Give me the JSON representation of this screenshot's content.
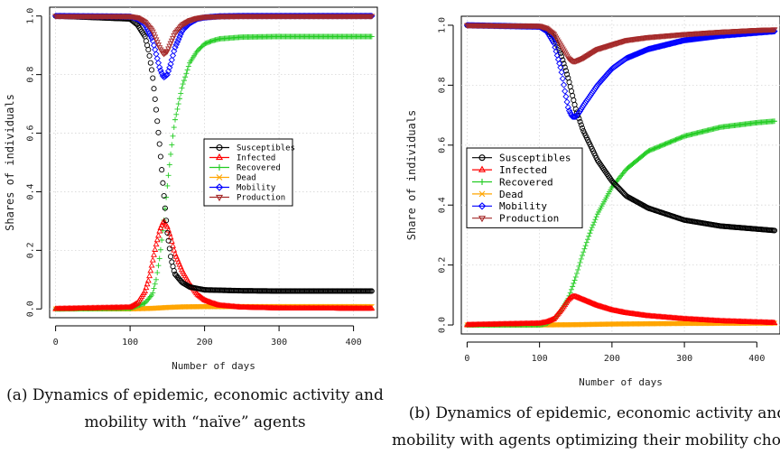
{
  "chart_data": [
    {
      "type": "line",
      "xlabel": "Number of days",
      "ylabel": "Shares of individuals",
      "xlim": [
        -8,
        432
      ],
      "ylim": [
        -0.03,
        1.03
      ],
      "xticks": [
        "0",
        "100",
        "200",
        "300",
        "400"
      ],
      "yticks": [
        "0.0",
        "0.2",
        "0.4",
        "0.6",
        "0.8",
        "1.0"
      ],
      "grid": true,
      "legend_position": "center-right",
      "caption_lines": [
        "(a) Dynamics of epidemic, economic activity and",
        "mobility with “naïve” agents"
      ],
      "series": [
        {
          "name": "Susceptibles",
          "color": "#000000",
          "marker": "circle",
          "x": [
            0,
            100,
            110,
            120,
            125,
            130,
            135,
            140,
            145,
            150,
            155,
            160,
            170,
            180,
            200,
            250,
            300,
            425
          ],
          "y": [
            1.0,
            0.99,
            0.97,
            0.93,
            0.88,
            0.8,
            0.68,
            0.55,
            0.4,
            0.26,
            0.17,
            0.12,
            0.09,
            0.075,
            0.065,
            0.062,
            0.061,
            0.061
          ]
        },
        {
          "name": "Infected",
          "color": "#ff0000",
          "marker": "triangle",
          "x": [
            0,
            100,
            110,
            120,
            125,
            130,
            135,
            140,
            145,
            150,
            155,
            160,
            170,
            180,
            190,
            200,
            210,
            220,
            250,
            300,
            425
          ],
          "y": [
            0.0,
            0.005,
            0.02,
            0.06,
            0.1,
            0.16,
            0.22,
            0.27,
            0.3,
            0.28,
            0.24,
            0.19,
            0.13,
            0.085,
            0.05,
            0.03,
            0.02,
            0.012,
            0.005,
            0.002,
            0.001
          ]
        },
        {
          "name": "Recovered",
          "color": "#22cc22",
          "marker": "plus",
          "x": [
            0,
            100,
            120,
            130,
            135,
            140,
            145,
            150,
            155,
            160,
            170,
            180,
            190,
            200,
            210,
            220,
            250,
            300,
            425
          ],
          "y": [
            0.0,
            0.002,
            0.02,
            0.05,
            0.1,
            0.18,
            0.29,
            0.42,
            0.54,
            0.64,
            0.76,
            0.84,
            0.88,
            0.905,
            0.915,
            0.922,
            0.928,
            0.93,
            0.93
          ]
        },
        {
          "name": "Dead",
          "color": "#ffa500",
          "marker": "cross",
          "x": [
            0,
            100,
            130,
            150,
            170,
            200,
            250,
            425
          ],
          "y": [
            0.0,
            0.0,
            0.002,
            0.005,
            0.007,
            0.008,
            0.008,
            0.008
          ]
        },
        {
          "name": "Mobility",
          "color": "#0000ff",
          "marker": "diamond",
          "x": [
            0,
            100,
            110,
            120,
            130,
            135,
            140,
            145,
            150,
            155,
            160,
            170,
            180,
            190,
            200,
            220,
            250,
            425
          ],
          "y": [
            1.0,
            0.998,
            0.99,
            0.97,
            0.92,
            0.87,
            0.82,
            0.79,
            0.8,
            0.84,
            0.89,
            0.95,
            0.975,
            0.99,
            0.995,
            0.999,
            1.0,
            1.0
          ]
        },
        {
          "name": "Production",
          "color": "#a52a2a",
          "marker": "triangle-down",
          "x": [
            0,
            100,
            110,
            120,
            130,
            135,
            140,
            145,
            150,
            155,
            160,
            170,
            180,
            190,
            200,
            220,
            250,
            425
          ],
          "y": [
            1.0,
            0.999,
            0.995,
            0.98,
            0.95,
            0.92,
            0.89,
            0.87,
            0.88,
            0.91,
            0.94,
            0.97,
            0.985,
            0.993,
            0.997,
            0.999,
            1.0,
            1.0
          ]
        }
      ]
    },
    {
      "type": "line",
      "xlabel": "Number of days",
      "ylabel": "Share of individuals",
      "xlim": [
        -8,
        432
      ],
      "ylim": [
        -0.03,
        1.03
      ],
      "xticks": [
        "0",
        "100",
        "200",
        "300",
        "400"
      ],
      "yticks": [
        "0.0",
        "0.2",
        "0.4",
        "0.6",
        "0.8",
        "1.0"
      ],
      "grid": true,
      "legend_position": "center-left",
      "caption_lines": [
        "(b) Dynamics of epidemic, economic activity and",
        "mobility with agents optimizing their mobility choice"
      ],
      "series": [
        {
          "name": "Susceptibles",
          "color": "#000000",
          "marker": "circle",
          "x": [
            0,
            100,
            110,
            120,
            130,
            140,
            145,
            150,
            160,
            170,
            180,
            200,
            220,
            250,
            300,
            350,
            400,
            425
          ],
          "y": [
            1.0,
            0.995,
            0.985,
            0.96,
            0.9,
            0.82,
            0.77,
            0.72,
            0.65,
            0.6,
            0.55,
            0.48,
            0.43,
            0.39,
            0.35,
            0.33,
            0.32,
            0.315
          ]
        },
        {
          "name": "Infected",
          "color": "#ff0000",
          "marker": "triangle",
          "x": [
            0,
            100,
            110,
            120,
            130,
            140,
            145,
            150,
            160,
            170,
            180,
            200,
            220,
            250,
            300,
            350,
            400,
            425
          ],
          "y": [
            0.0,
            0.005,
            0.01,
            0.02,
            0.05,
            0.085,
            0.095,
            0.095,
            0.085,
            0.075,
            0.065,
            0.05,
            0.04,
            0.03,
            0.02,
            0.013,
            0.009,
            0.007
          ]
        },
        {
          "name": "Recovered",
          "color": "#22cc22",
          "marker": "plus",
          "x": [
            0,
            100,
            110,
            120,
            130,
            140,
            150,
            160,
            170,
            180,
            200,
            220,
            250,
            300,
            350,
            400,
            425
          ],
          "y": [
            0.0,
            0.0,
            0.005,
            0.02,
            0.05,
            0.09,
            0.16,
            0.24,
            0.31,
            0.37,
            0.46,
            0.52,
            0.58,
            0.63,
            0.66,
            0.675,
            0.68
          ]
        },
        {
          "name": "Dead",
          "color": "#ffa500",
          "marker": "cross",
          "x": [
            0,
            100,
            150,
            200,
            250,
            300,
            425
          ],
          "y": [
            0.0,
            0.0,
            0.001,
            0.003,
            0.004,
            0.005,
            0.006
          ]
        },
        {
          "name": "Mobility",
          "color": "#0000ff",
          "marker": "diamond",
          "x": [
            0,
            100,
            110,
            120,
            130,
            135,
            140,
            145,
            150,
            155,
            160,
            170,
            180,
            200,
            220,
            250,
            300,
            350,
            400,
            425
          ],
          "y": [
            1.0,
            0.995,
            0.98,
            0.94,
            0.85,
            0.78,
            0.72,
            0.695,
            0.695,
            0.71,
            0.73,
            0.765,
            0.8,
            0.855,
            0.89,
            0.92,
            0.95,
            0.965,
            0.975,
            0.98
          ]
        },
        {
          "name": "Production",
          "color": "#a52a2a",
          "marker": "triangle-down",
          "x": [
            0,
            100,
            110,
            120,
            130,
            140,
            145,
            150,
            160,
            170,
            180,
            200,
            220,
            250,
            300,
            350,
            400,
            425
          ],
          "y": [
            1.0,
            0.998,
            0.99,
            0.97,
            0.93,
            0.89,
            0.88,
            0.88,
            0.89,
            0.905,
            0.92,
            0.935,
            0.95,
            0.96,
            0.97,
            0.978,
            0.984,
            0.986
          ]
        }
      ]
    }
  ]
}
